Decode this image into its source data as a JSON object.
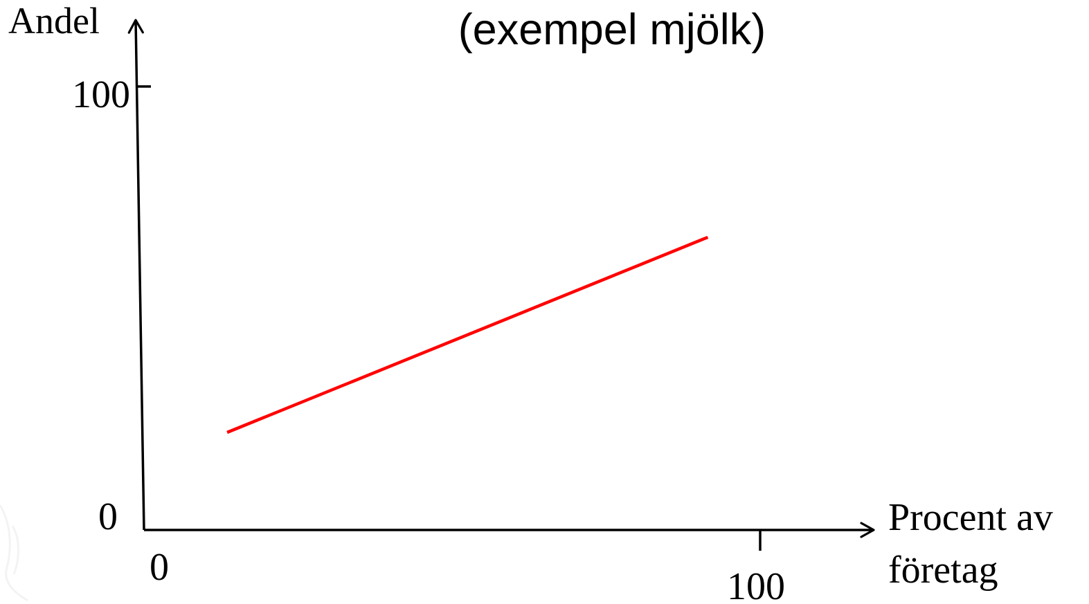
{
  "chart_data": {
    "type": "line",
    "title": "(exempel mjölk)",
    "ylabel": "Andel",
    "xlabel_lines": [
      "Procent av",
      "företag"
    ],
    "xlim": [
      0,
      100
    ],
    "ylim": [
      0,
      100
    ],
    "x_ticks": [
      {
        "value": 0,
        "label": "0"
      },
      {
        "value": 100,
        "label": "100"
      }
    ],
    "y_ticks": [
      {
        "value": 0,
        "label": "0"
      },
      {
        "value": 100,
        "label": "100"
      }
    ],
    "series": [
      {
        "color": "#ff0000",
        "points": [
          {
            "x": 13.5,
            "y": 22
          },
          {
            "x": 91.5,
            "y": 66
          }
        ]
      }
    ],
    "grid": false
  }
}
